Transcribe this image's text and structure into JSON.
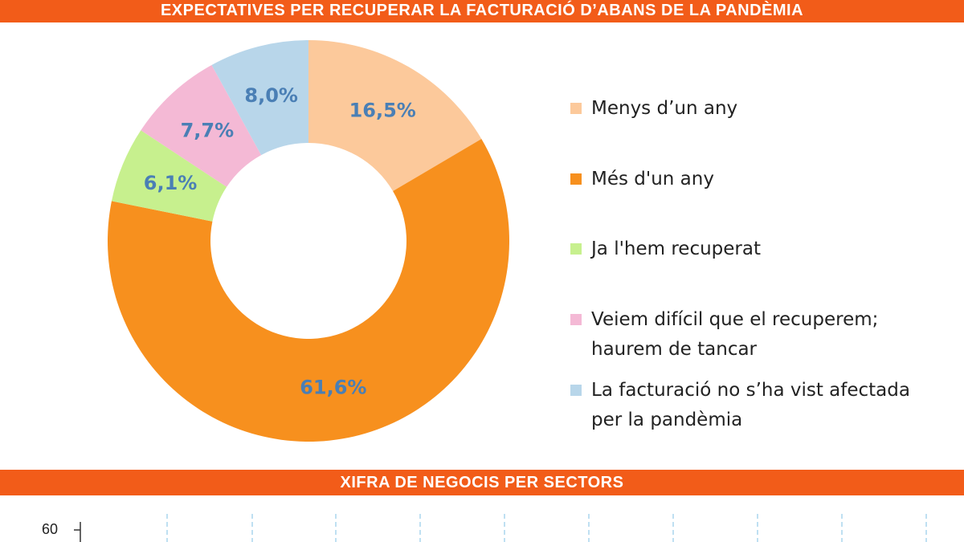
{
  "chart_data": [
    {
      "type": "donut",
      "title": "EXPECTATIVES PER RECUPERAR LA FACTURACIÓ D’ABANS DE LA PANDÈMIA",
      "categories": [
        "Menys d’un any",
        "Més d'un any",
        "Ja l'hem recuperat",
        "Veiem difícil que el recuperem; haurem de tancar",
        "La facturació no s’ha vist afectada per la pandèmia"
      ],
      "values": [
        16.5,
        61.6,
        6.1,
        7.7,
        8.0
      ],
      "value_labels": [
        "16,5%",
        "61,6%",
        "6,1%",
        "7,7%",
        "8,0%"
      ],
      "colors": [
        "#fcc99b",
        "#f7901e",
        "#c7f08e",
        "#f4b9d5",
        "#b8d6ea"
      ],
      "label_color": "#4a7fb5"
    },
    {
      "type": "line",
      "title": "XIFRA DE NEGOCIS PER SECTORS",
      "yticks": [
        60
      ]
    }
  ]
}
